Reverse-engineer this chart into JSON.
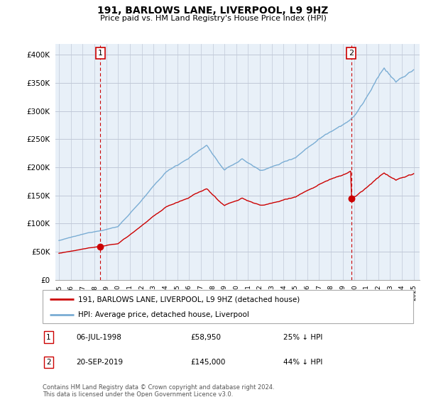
{
  "title": "191, BARLOWS LANE, LIVERPOOL, L9 9HZ",
  "subtitle": "Price paid vs. HM Land Registry's House Price Index (HPI)",
  "ylim": [
    0,
    420000
  ],
  "yticks": [
    0,
    50000,
    100000,
    150000,
    200000,
    250000,
    300000,
    350000,
    400000
  ],
  "ytick_labels": [
    "£0",
    "£50K",
    "£100K",
    "£150K",
    "£200K",
    "£250K",
    "£300K",
    "£350K",
    "£400K"
  ],
  "sale1_date": 1998.5,
  "sale1_price": 58950,
  "sale2_date": 2019.72,
  "sale2_price": 145000,
  "legend_label_red": "191, BARLOWS LANE, LIVERPOOL, L9 9HZ (detached house)",
  "legend_label_blue": "HPI: Average price, detached house, Liverpool",
  "annotation1_date": "06-JUL-1998",
  "annotation1_price": "£58,950",
  "annotation1_hpi": "25% ↓ HPI",
  "annotation2_date": "20-SEP-2019",
  "annotation2_price": "£145,000",
  "annotation2_hpi": "44% ↓ HPI",
  "footer": "Contains HM Land Registry data © Crown copyright and database right 2024.\nThis data is licensed under the Open Government Licence v3.0.",
  "hpi_color": "#7aadd4",
  "sale_color": "#cc0000",
  "vline_color": "#cc0000",
  "background_color": "#e8f0f8",
  "plot_bg_color": "#e8f0f8",
  "grid_color": "#c0c8d8"
}
